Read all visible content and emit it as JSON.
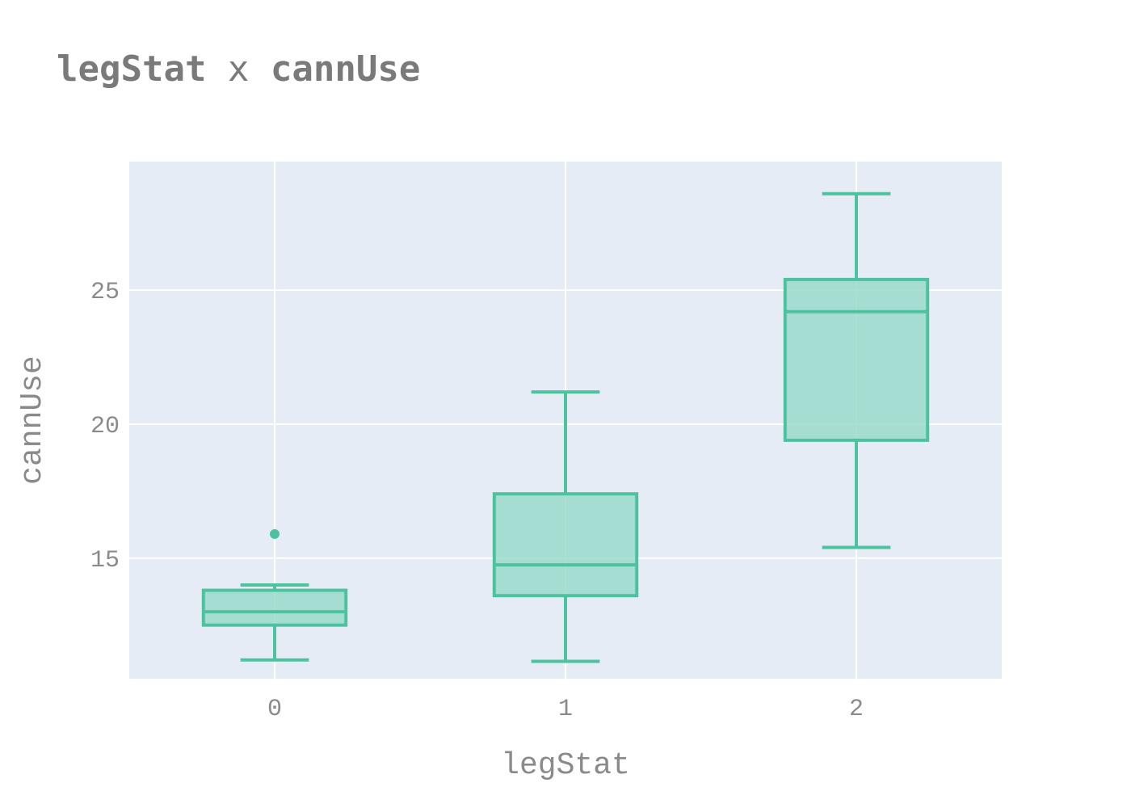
{
  "title": {
    "left": "legStat",
    "sep": " x ",
    "right": "cannUse"
  },
  "colors": {
    "plot_bg": "#e5ecf6",
    "grid": "#ffffff",
    "box_line": "#4cc39e",
    "box_fill": "#9adbcb"
  },
  "chart_data": {
    "type": "box",
    "xlabel": "legStat",
    "ylabel": "cannUse",
    "categories": [
      "0",
      "1",
      "2"
    ],
    "ylim": [
      10.5,
      29.8
    ],
    "yticks": [
      15,
      20,
      25
    ],
    "grid": true,
    "boxes": [
      {
        "category": "0",
        "lower_fence": 11.2,
        "q1": 12.5,
        "median": 13.0,
        "q3": 13.8,
        "upper_fence": 14.0,
        "outliers": [
          15.9
        ]
      },
      {
        "category": "1",
        "lower_fence": 11.15,
        "q1": 13.6,
        "median": 14.75,
        "q3": 17.4,
        "upper_fence": 21.2,
        "outliers": []
      },
      {
        "category": "2",
        "lower_fence": 15.4,
        "q1": 19.4,
        "median": 24.2,
        "q3": 25.4,
        "upper_fence": 28.6,
        "outliers": []
      }
    ]
  }
}
